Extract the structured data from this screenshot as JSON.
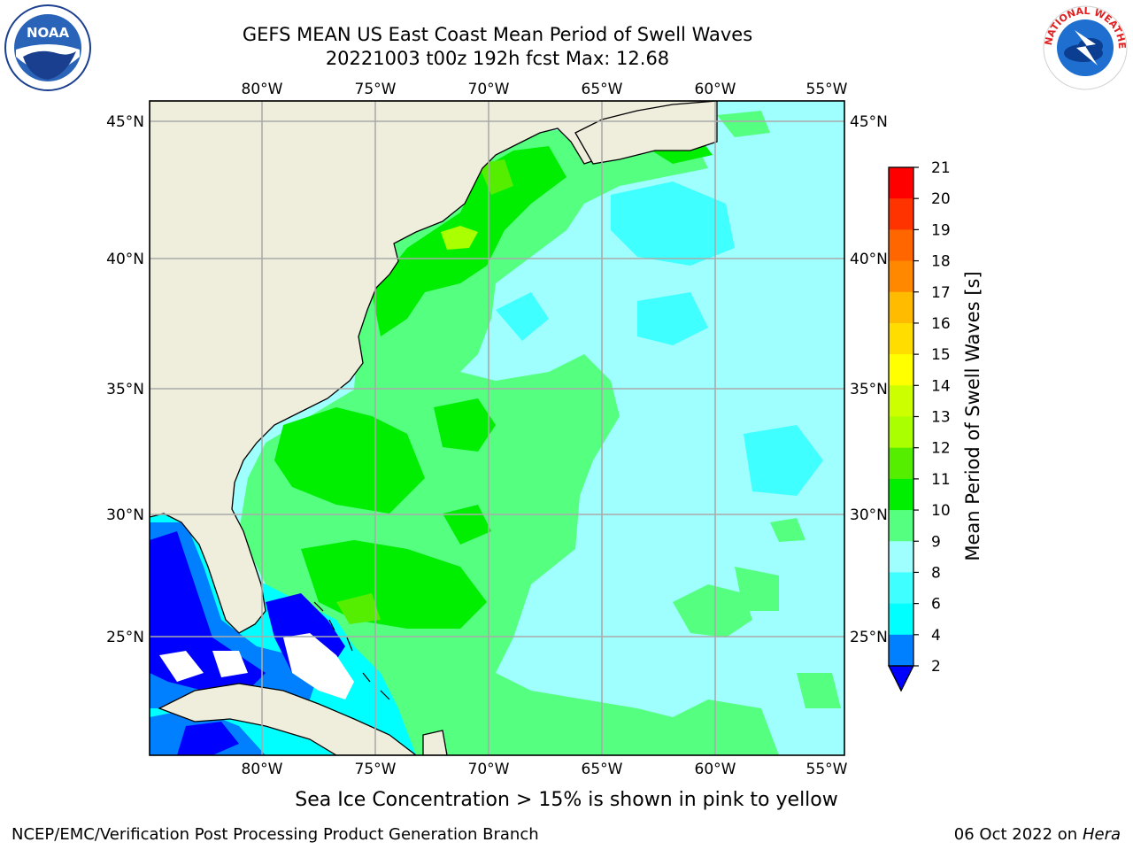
{
  "title_line1": "GEFS MEAN US East Coast Mean Period of Swell Waves",
  "title_line2": "20221003 t00z 192h fcst   Max: 12.68",
  "logos": {
    "left_text": "NOAA",
    "right_text": "NATIONAL WEATHER SERVICE"
  },
  "map": {
    "lon_labels": [
      "80°W",
      "75°W",
      "70°W",
      "65°W",
      "60°W",
      "55°W"
    ],
    "lat_labels": [
      "45°N",
      "40°N",
      "35°N",
      "30°N",
      "25°N"
    ]
  },
  "colorbar": {
    "label": "Mean Period of Swell Waves [s]",
    "ticks": [
      "2",
      "4",
      "6",
      "8",
      "9",
      "10",
      "11",
      "12",
      "13",
      "14",
      "15",
      "16",
      "17",
      "18",
      "19",
      "20",
      "21"
    ],
    "colors": [
      "#0000ff",
      "#0080ff",
      "#00ffff",
      "#40ffff",
      "#9fffff",
      "#55ff80",
      "#00ee00",
      "#55ee00",
      "#aaff00",
      "#ccff00",
      "#ffff00",
      "#ffdd00",
      "#ffbb00",
      "#ff8800",
      "#ff6600",
      "#ff3300",
      "#ff0000"
    ]
  },
  "footer": {
    "note": "Sea Ice Concentration > 15% is shown in pink to yellow",
    "credit": "NCEP/EMC/Verification Post Processing Product Generation Branch",
    "date_prefix": "06 Oct 2022 on",
    "date_host": "Hera"
  }
}
